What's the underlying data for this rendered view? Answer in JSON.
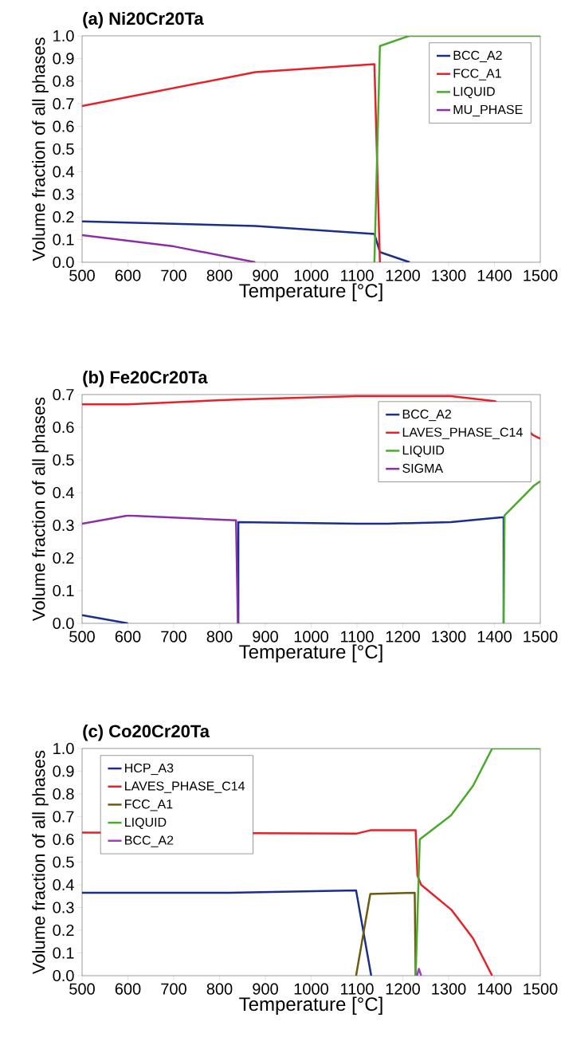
{
  "chart_data": [
    {
      "type": "line",
      "title": "(a) Ni20Cr20Ta",
      "xlabel": "Temperature [°C]",
      "ylabel": "Volume fraction of all phases",
      "xlim": [
        500,
        1500
      ],
      "ylim": [
        0,
        1.0
      ],
      "xticks": [
        500,
        600,
        700,
        800,
        900,
        1000,
        1100,
        1200,
        1300,
        1400,
        1500
      ],
      "yticks": [
        {
          "value": 0,
          "label": "0.0"
        },
        {
          "value": 0.1,
          "label": "0.1"
        },
        {
          "value": 0.2,
          "label": "0.2"
        },
        {
          "value": 0.3,
          "label": "0.3"
        },
        {
          "value": 0.4,
          "label": "0.4"
        },
        {
          "value": 0.5,
          "label": "0.5"
        },
        {
          "value": 0.6,
          "label": "0.6"
        },
        {
          "value": 0.7,
          "label": "0.7"
        },
        {
          "value": 0.8,
          "label": "0.8"
        },
        {
          "value": 0.9,
          "label": "0.9"
        },
        {
          "value": 1.0,
          "label": "1.0"
        }
      ],
      "grid": false,
      "legend": "top right",
      "marker": "none",
      "line_style": "solid",
      "series": [
        {
          "name": "BCC_A2",
          "color": "#1a2f8c",
          "x": [
            500,
            878,
            1138,
            1150,
            1215
          ],
          "values": [
            0.18,
            0.16,
            0.125,
            0.045,
            0
          ]
        },
        {
          "name": "FCC_A1",
          "color": "#e8202a",
          "x": [
            500,
            878,
            1138,
            1150
          ],
          "values": [
            0.69,
            0.84,
            0.875,
            0
          ]
        },
        {
          "name": "LIQUID",
          "color": "#4aab2b",
          "x": [
            1138,
            1150,
            1214,
            1500
          ],
          "values": [
            0,
            0.955,
            1.0,
            1.0
          ]
        },
        {
          "name": "MU_PHASE",
          "color": "#8b2fa8",
          "x": [
            500,
            700,
            878
          ],
          "values": [
            0.12,
            0.07,
            0
          ]
        }
      ]
    },
    {
      "type": "line",
      "title": "(b) Fe20Cr20Ta",
      "xlabel": "Temperature [°C]",
      "ylabel": "Volume fraction of all phases",
      "xlim": [
        500,
        1500
      ],
      "ylim": [
        0,
        0.7
      ],
      "xticks": [
        500,
        600,
        700,
        800,
        900,
        1000,
        1100,
        1200,
        1300,
        1400,
        1500
      ],
      "yticks": [
        {
          "value": 0,
          "label": "0.0"
        },
        {
          "value": 0.1,
          "label": "0.1"
        },
        {
          "value": 0.2,
          "label": "0.2"
        },
        {
          "value": 0.3,
          "label": "0.3"
        },
        {
          "value": 0.4,
          "label": "0.4"
        },
        {
          "value": 0.5,
          "label": "0.5"
        },
        {
          "value": 0.6,
          "label": "0.6"
        },
        {
          "value": 0.7,
          "label": "0.7"
        }
      ],
      "grid": false,
      "legend": "top right",
      "marker": "none",
      "line_style": "solid",
      "series": [
        {
          "name": "BCC_A2",
          "color": "#1a2f8c",
          "x": [
            500,
            600,
            700,
            841,
            841,
            1098,
            1167,
            1305,
            1420,
            1420
          ],
          "values": [
            0.025,
            0,
            null,
            0,
            0.31,
            0.305,
            0.305,
            0.31,
            0.325,
            0
          ]
        },
        {
          "name": "LAVES_PHASE_C14",
          "color": "#e8202a",
          "x": [
            500,
            600,
            836,
            1098,
            1305,
            1401,
            1485,
            1500
          ],
          "values": [
            0.67,
            0.67,
            0.685,
            0.695,
            0.695,
            0.68,
            0.575,
            0.565
          ]
        },
        {
          "name": "LIQUID",
          "color": "#4aab2b",
          "x": [
            1420,
            1422,
            1485,
            1500
          ],
          "values": [
            0,
            0.33,
            0.42,
            0.435
          ]
        },
        {
          "name": "SIGMA",
          "color": "#8b2fa8",
          "x": [
            500,
            600,
            836,
            840
          ],
          "values": [
            0.305,
            0.33,
            0.315,
            0
          ]
        }
      ]
    },
    {
      "type": "line",
      "title": "(c) Co20Cr20Ta",
      "xlabel": "Temperature [°C]",
      "ylabel": "Volume fraction of all phases",
      "xlim": [
        500,
        1500
      ],
      "ylim": [
        0,
        1.0
      ],
      "xticks": [
        500,
        600,
        700,
        800,
        900,
        1000,
        1100,
        1200,
        1300,
        1400,
        1500
      ],
      "yticks": [
        {
          "value": 0,
          "label": "0.0"
        },
        {
          "value": 0.1,
          "label": "0.1"
        },
        {
          "value": 0.2,
          "label": "0.2"
        },
        {
          "value": 0.3,
          "label": "0.3"
        },
        {
          "value": 0.4,
          "label": "0.4"
        },
        {
          "value": 0.5,
          "label": "0.5"
        },
        {
          "value": 0.6,
          "label": "0.6"
        },
        {
          "value": 0.7,
          "label": "0.7"
        },
        {
          "value": 0.8,
          "label": "0.8"
        },
        {
          "value": 0.9,
          "label": "0.9"
        },
        {
          "value": 1.0,
          "label": "1.0"
        }
      ],
      "grid": false,
      "legend": "top left",
      "marker": "none",
      "line_style": "solid",
      "series": [
        {
          "name": "HCP_A3",
          "color": "#1a2f8c",
          "x": [
            500,
            822,
            1098,
            1131
          ],
          "values": [
            0.365,
            0.365,
            0.375,
            0
          ]
        },
        {
          "name": "LAVES_PHASE_C14",
          "color": "#e8202a",
          "x": [
            500,
            1098,
            1129,
            1228,
            1232,
            1240,
            1306,
            1353,
            1395
          ],
          "values": [
            0.63,
            0.625,
            0.64,
            0.64,
            0.44,
            0.4,
            0.29,
            0.165,
            0
          ]
        },
        {
          "name": "FCC_A1",
          "color": "#6b5a10",
          "x": [
            1098,
            1129,
            1226,
            1228
          ],
          "values": [
            0,
            0.36,
            0.365,
            0
          ]
        },
        {
          "name": "LIQUID",
          "color": "#4aab2b",
          "x": [
            1228,
            1237,
            1305,
            1353,
            1395,
            1500
          ],
          "values": [
            0,
            0.6,
            0.705,
            0.835,
            1.0,
            1.0
          ]
        },
        {
          "name": "BCC_A2",
          "color": "#a040c0",
          "x": [
            1231,
            1235,
            1240
          ],
          "values": [
            0,
            0.03,
            0
          ]
        }
      ]
    }
  ]
}
